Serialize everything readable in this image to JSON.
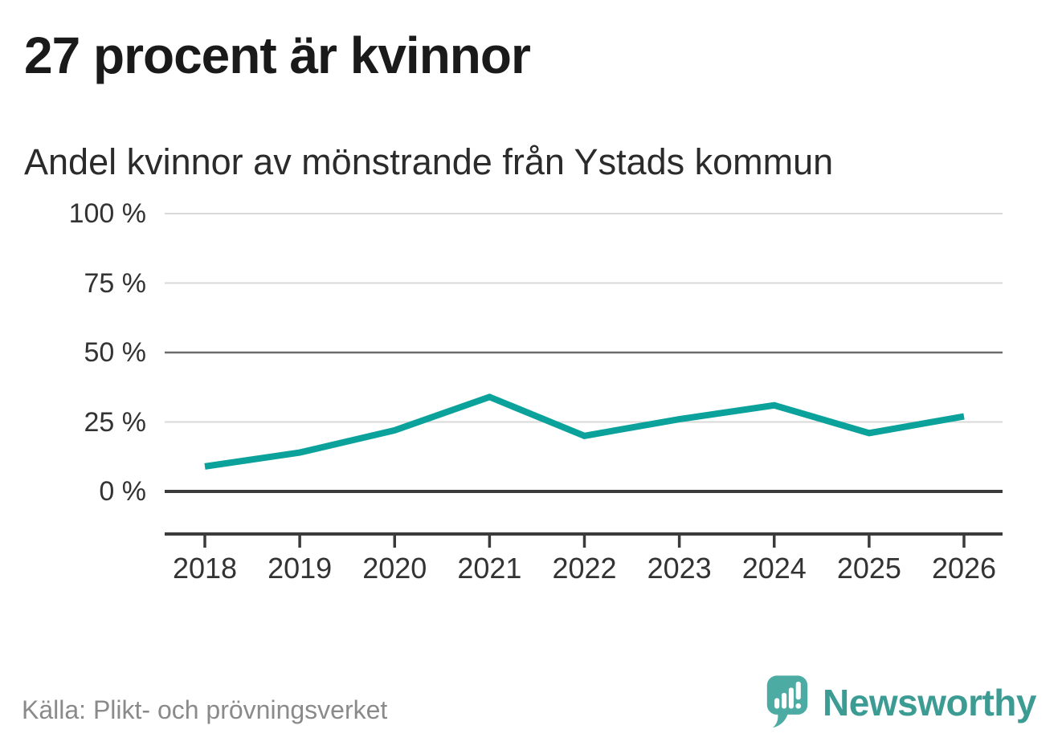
{
  "header": {
    "title": "27 procent är kvinnor",
    "subtitle": "Andel kvinnor av mönstrande från Ystads kommun"
  },
  "footer": {
    "source": "Källa: Plikt- och prövningsverket",
    "brand": "Newsworthy",
    "logo_icon": "newsworthy-speech-bubble-bar-chart-icon"
  },
  "colors": {
    "line": "#0AA29A",
    "grid_light": "#D9D9D9",
    "grid_mid": "#6B6B6B",
    "axis_dark": "#3B3B3B",
    "title_text": "#1A1A1A",
    "subtitle_text": "#2B2B2B",
    "tick_label": "#333333",
    "source_text": "#8A8A8A",
    "brand_text": "#3C9C94",
    "logo_mark": "#4CACA3"
  },
  "chart_data": {
    "type": "line",
    "title": "27 procent är kvinnor",
    "subtitle": "Andel kvinnor av mönstrande från Ystads kommun",
    "x": [
      2018,
      2019,
      2020,
      2021,
      2022,
      2023,
      2024,
      2025,
      2026
    ],
    "series": [
      {
        "name": "Andel kvinnor av mönstrande",
        "values": [
          9,
          14,
          22,
          34,
          20,
          26,
          31,
          21,
          27
        ]
      }
    ],
    "unit": "%",
    "xlabel": "",
    "ylabel": "",
    "ylim": [
      0,
      100
    ],
    "yticks": [
      0,
      25,
      50,
      75,
      100
    ],
    "ytick_labels": [
      "0 %",
      "25 %",
      "50 %",
      "75 %",
      "100 %"
    ],
    "xtick_labels": [
      "2018",
      "2019",
      "2020",
      "2021",
      "2022",
      "2023",
      "2024",
      "2025",
      "2026"
    ],
    "grid": "horizontal",
    "emphasized_gridlines": [
      0,
      50
    ],
    "legend_position": "none"
  }
}
